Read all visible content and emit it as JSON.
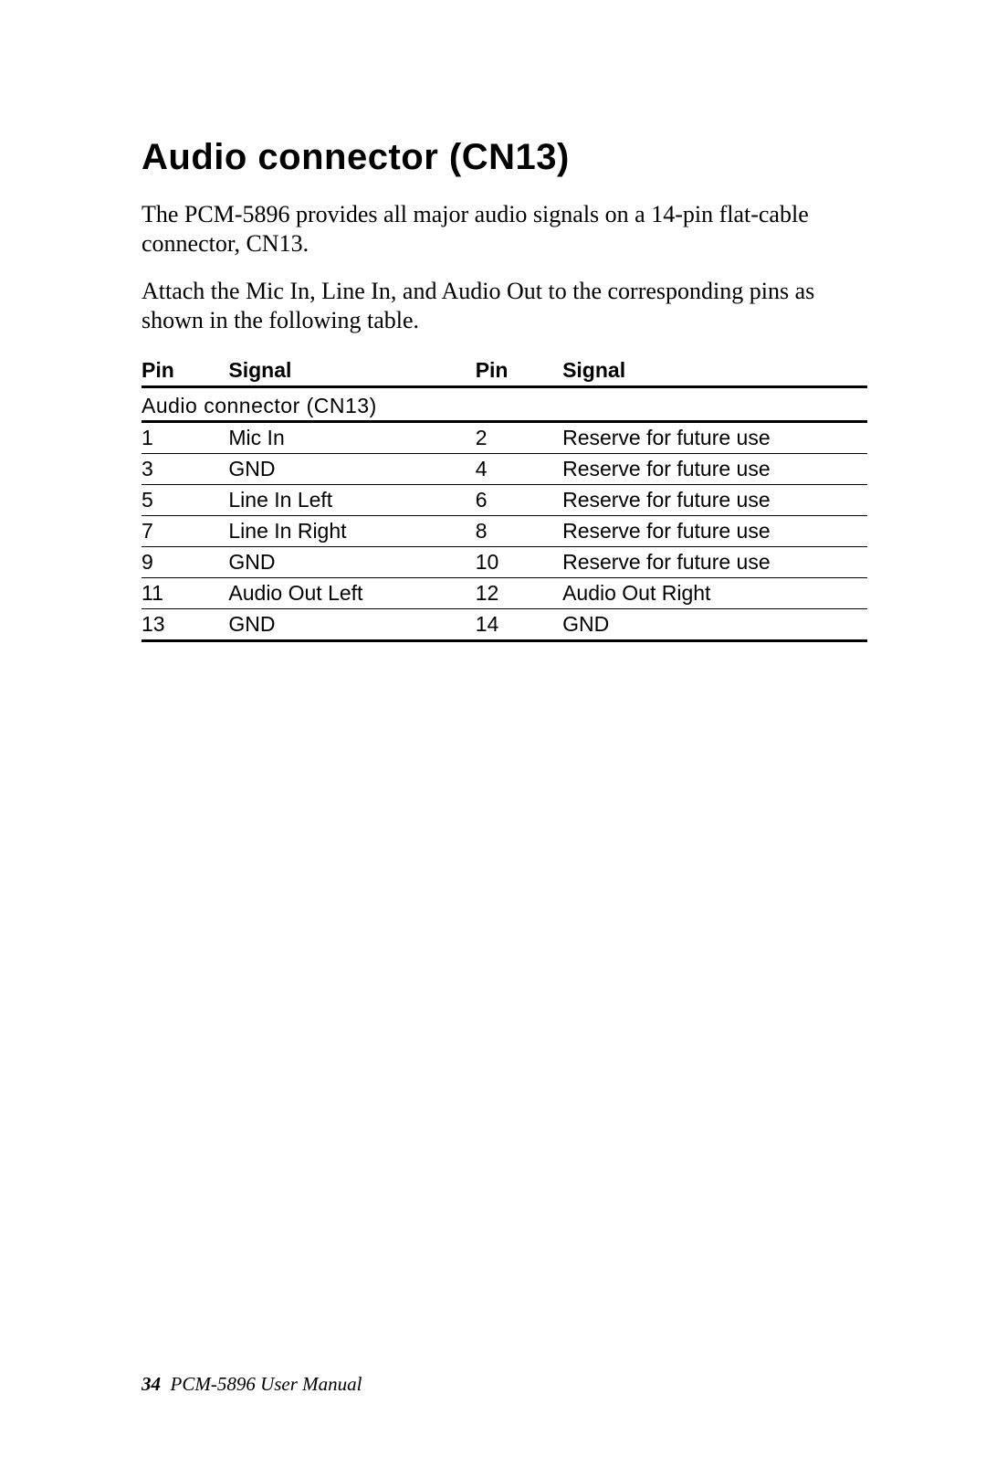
{
  "heading": "Audio connector  (CN13)",
  "paragraphs": [
    "The PCM-5896 provides all major audio signals on a 14-pin flat-cable connector, CN13.",
    "Attach the Mic In, Line In, and Audio Out to the corresponding pins as shown in the following table."
  ],
  "table": {
    "caption": "Audio connector (CN13)",
    "columns": [
      "Pin",
      "Signal",
      "Pin",
      "Signal"
    ],
    "rows": [
      [
        "1",
        "Mic In",
        "2",
        "Reserve for future use"
      ],
      [
        "3",
        "GND",
        "4",
        "Reserve for future use"
      ],
      [
        "5",
        "Line In Left",
        "6",
        "Reserve for future use"
      ],
      [
        "7",
        "Line In Right",
        "8",
        "Reserve for future use"
      ],
      [
        "9",
        "GND",
        "10",
        "Reserve for future use"
      ],
      [
        "11",
        "Audio Out Left",
        "12",
        "Audio Out Right"
      ],
      [
        "13",
        "GND",
        "14",
        "GND"
      ]
    ]
  },
  "footer": {
    "page_number": "34",
    "title": "PCM-5896  User Manual"
  }
}
